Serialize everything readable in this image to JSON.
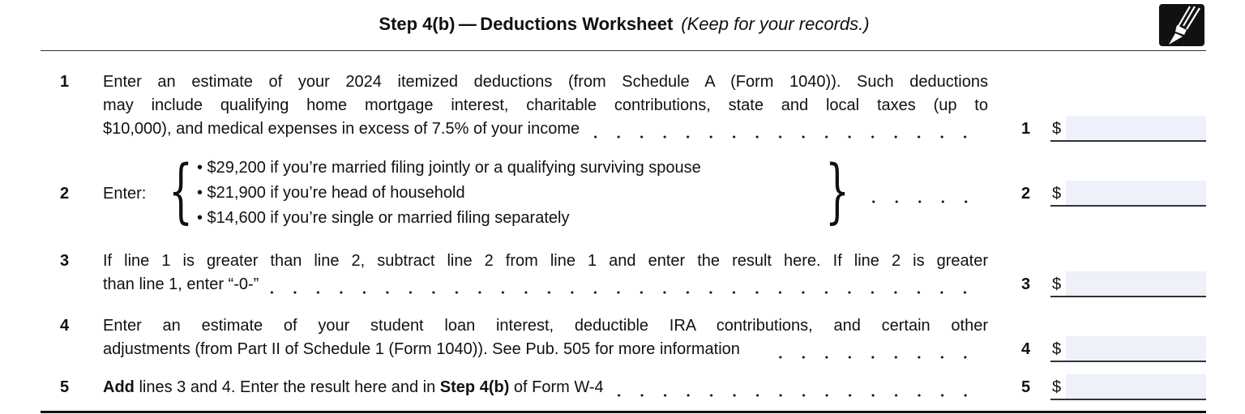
{
  "header": {
    "title": "Step 4(b) — Deductions Worksheet",
    "subtitle": "(Keep for your records.)",
    "icon": "pencil-icon"
  },
  "rows": [
    {
      "num": "1",
      "lines": [
        "Enter an estimate of your 2024 itemized deductions (from Schedule A (Form 1040)). Such deductions",
        "may include qualifying home mortgage interest, charitable contributions, state and local taxes (up to",
        "$10,000), and medical expenses in excess of 7.5% of your income"
      ],
      "line_ref": "1",
      "currency": "$",
      "value": ""
    },
    {
      "num": "2",
      "label": "Enter:",
      "options": [
        "• $29,200 if you’re married filing jointly or a qualifying surviving spouse",
        "• $21,900 if you’re head of household",
        "• $14,600 if you’re single or married filing separately"
      ],
      "line_ref": "2",
      "currency": "$",
      "value": ""
    },
    {
      "num": "3",
      "lines": [
        "If line 1 is greater than line 2, subtract line 2 from line 1 and enter the result here. If line 2 is greater",
        "than line 1, enter “-0-”"
      ],
      "line_ref": "3",
      "currency": "$",
      "value": ""
    },
    {
      "num": "4",
      "lines": [
        "Enter an estimate of your student loan interest, deductible IRA contributions, and certain other",
        "adjustments (from Part II of Schedule 1 (Form 1040)). See Pub. 505 for more information"
      ],
      "line_ref": "4",
      "currency": "$",
      "value": ""
    },
    {
      "num": "5",
      "bold1": "Add",
      "text1": " lines 3 and 4. Enter the result here and in ",
      "bold2": "Step 4(b)",
      "text2": " of Form W-4",
      "line_ref": "5",
      "currency": "$",
      "value": ""
    }
  ]
}
